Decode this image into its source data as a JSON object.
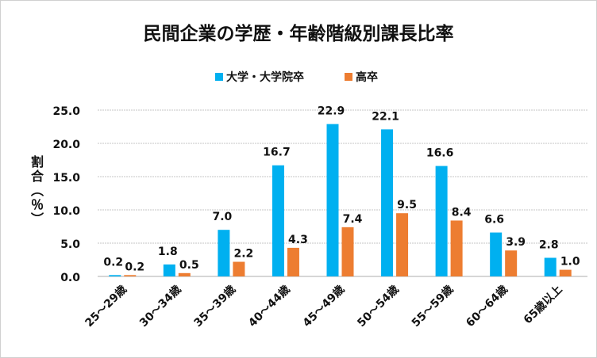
{
  "chart_data": {
    "type": "bar",
    "title": "民間企業の学歴・年齢階級別課長比率",
    "xlabel": "",
    "ylabel": "割合（％）",
    "ylim": [
      0,
      25
    ],
    "yticks": [
      "0.0",
      "5.0",
      "10.0",
      "15.0",
      "20.0",
      "25.0"
    ],
    "grid": true,
    "legend_position": "top",
    "categories": [
      "25～29歳",
      "30～34歳",
      "35～39歳",
      "40～44歳",
      "45～49歳",
      "50～54歳",
      "55～59歳",
      "60～64歳",
      "65歳以上"
    ],
    "series": [
      {
        "name": "大学・大学院卒",
        "color": "#00B0F0",
        "values": [
          0.2,
          1.8,
          7.0,
          16.7,
          22.9,
          22.1,
          16.6,
          6.6,
          2.8
        ]
      },
      {
        "name": "高卒",
        "color": "#ED7D31",
        "values": [
          0.2,
          0.5,
          2.2,
          4.3,
          7.4,
          9.5,
          8.4,
          3.9,
          1.0
        ]
      }
    ]
  }
}
